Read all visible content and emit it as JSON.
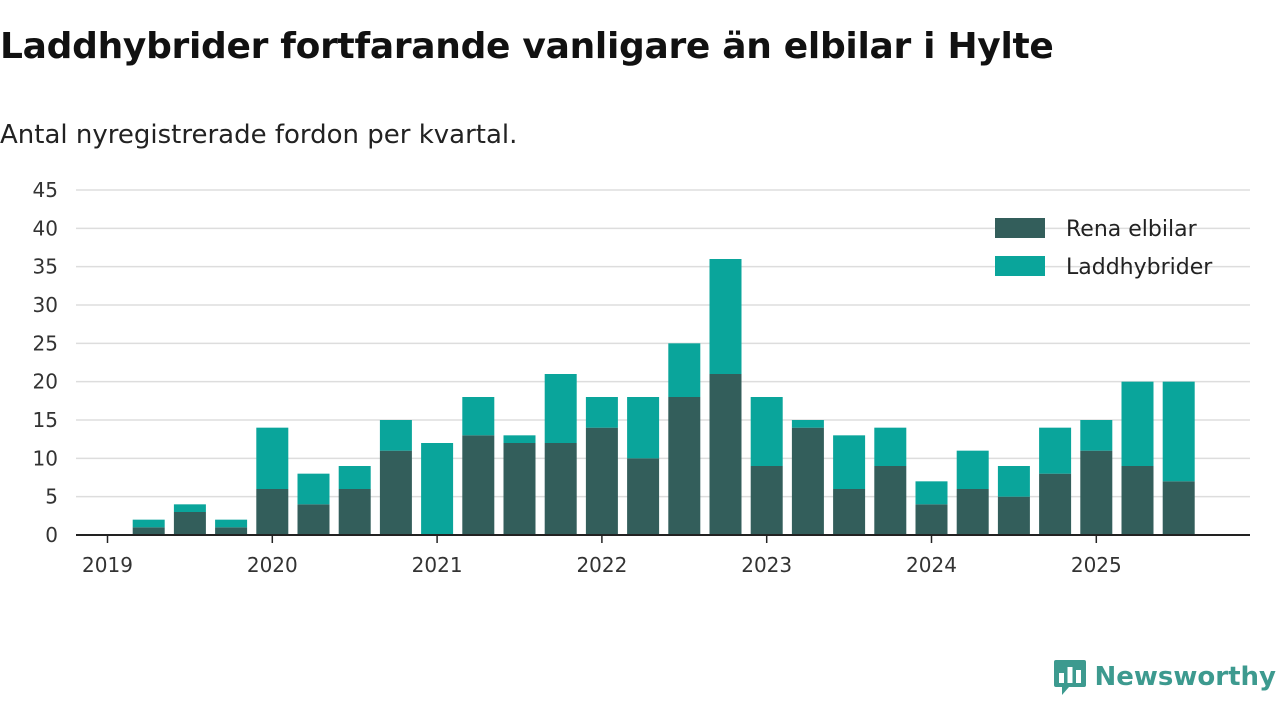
{
  "title": "Laddhybrider fortfarande vanligare än elbilar i Hylte",
  "subtitle": "Antal nyregistrerade fordon per kvartal.",
  "brand": {
    "name": "Newsworthy",
    "icon": "newsworthy-logo-icon"
  },
  "colors": {
    "rena_elbilar": "#335e5b",
    "laddhybrider": "#0aa59b",
    "grid": "#dddddd",
    "axis": "#222222"
  },
  "chart_data": {
    "type": "bar",
    "stacked": true,
    "title": "Laddhybrider fortfarande vanligare än elbilar i Hylte",
    "subtitle": "Antal nyregistrerade fordon per kvartal.",
    "xlabel": "",
    "ylabel": "",
    "ylim": [
      0,
      45
    ],
    "yticks": [
      0,
      5,
      10,
      15,
      20,
      25,
      30,
      35,
      40,
      45
    ],
    "xticks": [
      "2019",
      "2020",
      "2021",
      "2022",
      "2023",
      "2024",
      "2025"
    ],
    "grid": true,
    "legend_position": "top-right",
    "categories": [
      "2019 Q1",
      "2019 Q2",
      "2019 Q3",
      "2019 Q4",
      "2020 Q1",
      "2020 Q2",
      "2020 Q3",
      "2020 Q4",
      "2021 Q1",
      "2021 Q2",
      "2021 Q3",
      "2021 Q4",
      "2022 Q1",
      "2022 Q2",
      "2022 Q3",
      "2022 Q4",
      "2023 Q1",
      "2023 Q2",
      "2023 Q3",
      "2023 Q4",
      "2024 Q1",
      "2024 Q2",
      "2024 Q3",
      "2024 Q4",
      "2025 Q1",
      "2025 Q2",
      "2025 Q3"
    ],
    "series": [
      {
        "name": "Rena elbilar",
        "values": [
          0,
          1,
          3,
          1,
          6,
          4,
          6,
          11,
          0,
          13,
          12,
          12,
          14,
          10,
          18,
          21,
          9,
          14,
          6,
          9,
          4,
          6,
          5,
          8,
          11,
          9,
          7
        ]
      },
      {
        "name": "Laddhybrider",
        "values": [
          0,
          1,
          1,
          1,
          8,
          4,
          3,
          4,
          12,
          5,
          1,
          9,
          4,
          8,
          7,
          15,
          9,
          1,
          7,
          5,
          3,
          5,
          4,
          6,
          4,
          11,
          13
        ]
      }
    ]
  }
}
